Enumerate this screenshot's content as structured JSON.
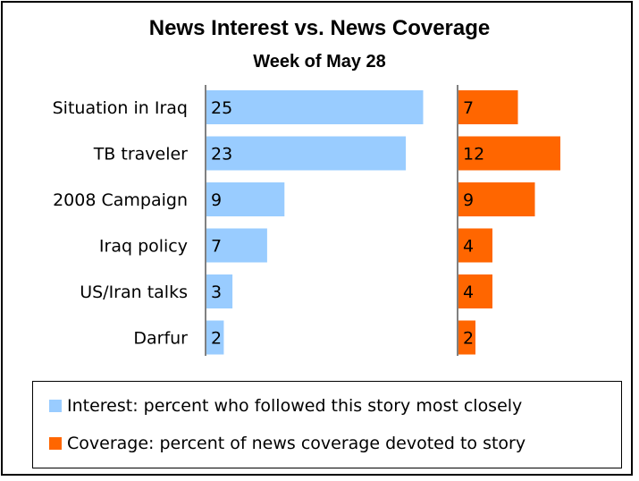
{
  "chart_data": {
    "type": "bar",
    "title": "News Interest vs. News Coverage",
    "subtitle": "Week of May 28",
    "categories": [
      "Situation in Iraq",
      "TB traveler",
      "2008 Campaign",
      "Iraq policy",
      "US/Iran talks",
      "Darfur"
    ],
    "series": [
      {
        "name": "Interest: percent who followed this story most closely",
        "values": [
          25,
          23,
          9,
          7,
          3,
          2
        ],
        "color": "#99ccff"
      },
      {
        "name": "Coverage: percent of news coverage devoted to story",
        "values": [
          7,
          12,
          9,
          4,
          4,
          2
        ],
        "color": "#ff6600"
      }
    ],
    "orientation": "horizontal",
    "layout": "side-by-side panels",
    "legend_position": "bottom",
    "grid": false
  }
}
